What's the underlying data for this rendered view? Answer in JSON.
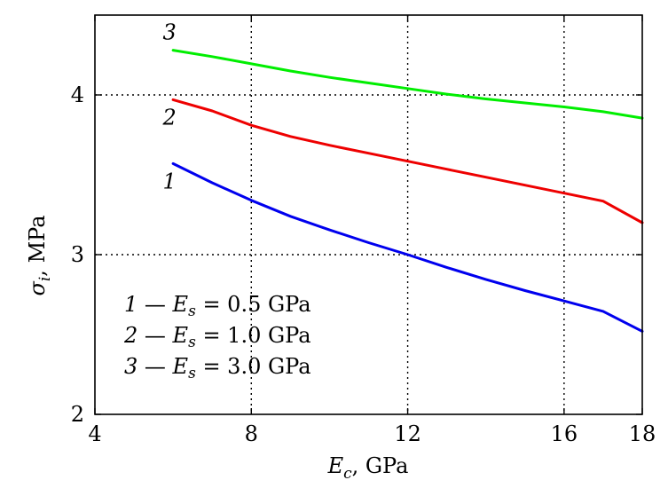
{
  "chart_data": {
    "type": "line",
    "xlabel_symbol": "E",
    "xlabel_sub": "c",
    "xlabel_unit": ", GPa",
    "ylabel_symbol": "σ",
    "ylabel_sub": "i",
    "ylabel_unit": ", MPa",
    "xlim": [
      4,
      18
    ],
    "ylim": [
      2,
      4.5
    ],
    "xticks": [
      4,
      8,
      12,
      16,
      18
    ],
    "yticks": [
      2,
      3,
      4
    ],
    "xtick_labels": [
      "4",
      "8",
      "12",
      "16",
      "18"
    ],
    "ytick_labels": [
      "2",
      "3",
      "4"
    ],
    "grid_x": [
      8,
      12,
      16
    ],
    "grid_y": [
      3,
      4
    ],
    "grid": "dotted",
    "legend_placement": "lower-left",
    "series": [
      {
        "label": "1",
        "legend_param": "0.5",
        "color": "#0000ee",
        "x": [
          6,
          7,
          8,
          9,
          10,
          11,
          12,
          13,
          14,
          15,
          16,
          17,
          18
        ],
        "y": [
          3.57,
          3.45,
          3.34,
          3.24,
          3.155,
          3.075,
          3.0,
          2.92,
          2.845,
          2.775,
          2.71,
          2.645,
          2.52
        ]
      },
      {
        "label": "2",
        "legend_param": "1.0",
        "color": "#ee0000",
        "x": [
          6,
          7,
          8,
          9,
          10,
          11,
          12,
          13,
          14,
          15,
          16,
          17,
          18
        ],
        "y": [
          3.97,
          3.9,
          3.81,
          3.74,
          3.685,
          3.635,
          3.585,
          3.535,
          3.485,
          3.435,
          3.385,
          3.335,
          3.2
        ]
      },
      {
        "label": "3",
        "legend_param": "3.0",
        "color": "#00ee00",
        "x": [
          6,
          7,
          8,
          9,
          10,
          11,
          12,
          13,
          14,
          15,
          16,
          17,
          18
        ],
        "y": [
          4.28,
          4.24,
          4.195,
          4.15,
          4.11,
          4.075,
          4.04,
          4.005,
          3.975,
          3.95,
          3.925,
          3.895,
          3.855
        ]
      }
    ],
    "legend_entries": [
      {
        "num": "1",
        "dash": " — ",
        "sym": "E",
        "sub": "s",
        "rest": " = 0.5 GPa"
      },
      {
        "num": "2",
        "dash": " — ",
        "sym": "E",
        "sub": "s",
        "rest": " = 1.0 GPa"
      },
      {
        "num": "3",
        "dash": " — ",
        "sym": "E",
        "sub": "s",
        "rest": " = 3.0 GPa"
      }
    ]
  }
}
